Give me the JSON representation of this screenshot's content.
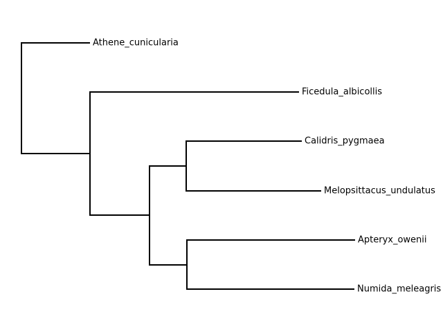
{
  "tree": {
    "style": {
      "line_color": "#000000",
      "background": "#ffffff"
    },
    "leaves": [
      "Athene_cunicularia",
      "Ficedula_albicollis",
      "Calidris_pygmaea",
      "Melopsittacus_undulatus",
      "Apteryx_owenii",
      "Numida_meleagris"
    ],
    "newick": "(Athene_cunicularia,(Ficedula_albicollis,((Calidris_pygmaea,Melopsittacus_undulatus),(Apteryx_owenii,Numida_meleagris))));"
  }
}
